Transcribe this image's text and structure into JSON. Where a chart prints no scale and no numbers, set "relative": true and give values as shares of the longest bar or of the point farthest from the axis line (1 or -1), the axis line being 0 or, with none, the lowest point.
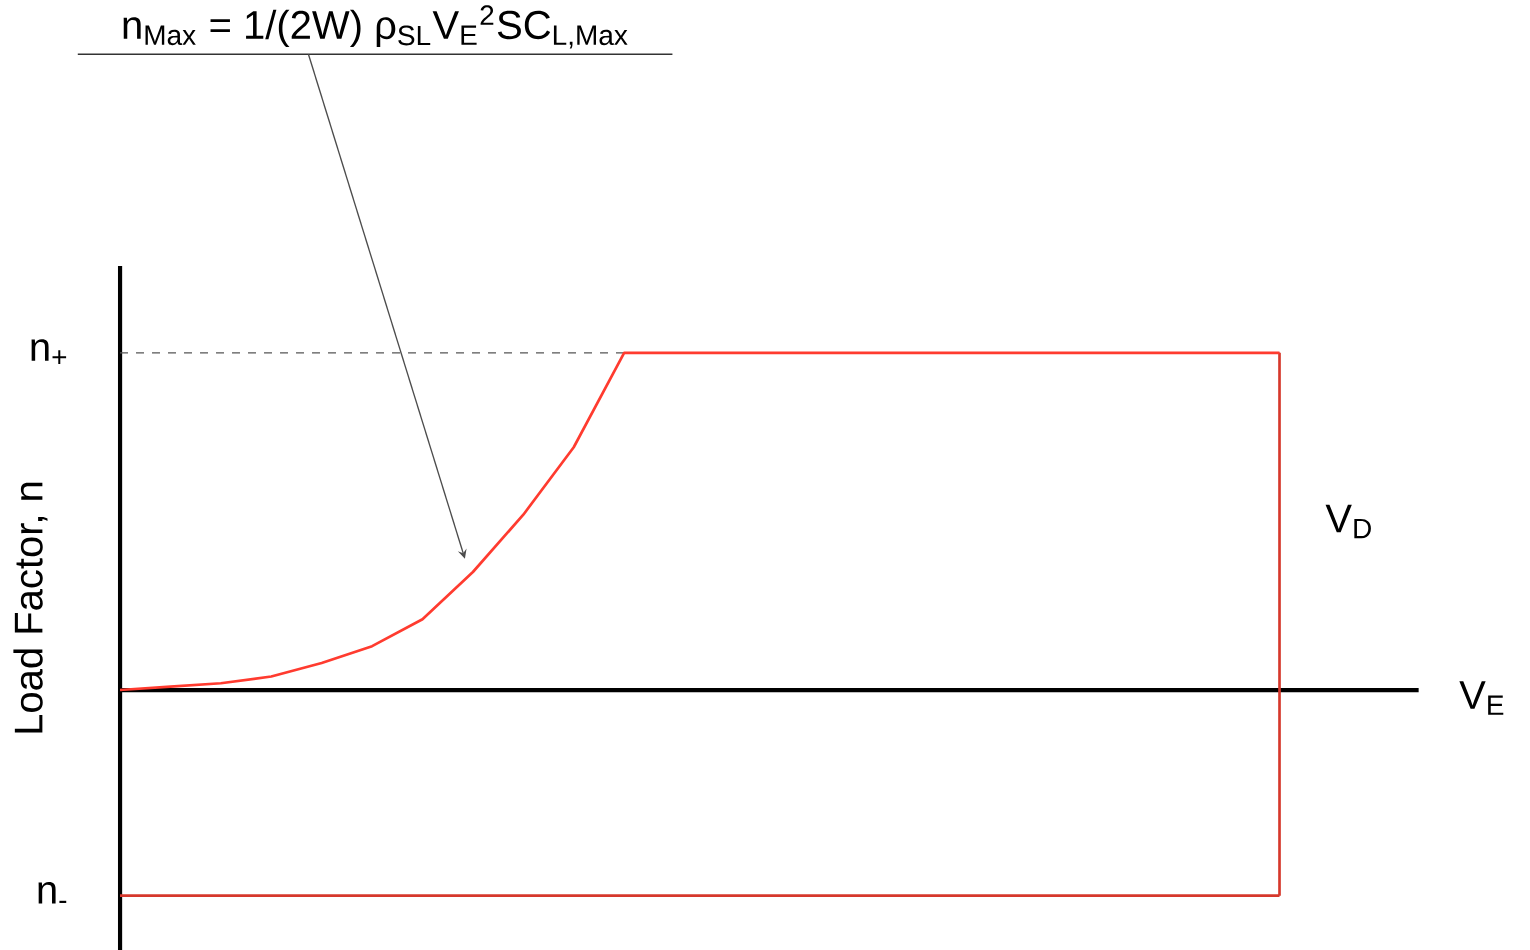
{
  "chart_data": {
    "type": "line",
    "relative": true,
    "xlabel": "V$_{E}$",
    "ylabel": "Load Factor, n",
    "categories": [
      null,
      null,
      null,
      null,
      null,
      null,
      null,
      null,
      null,
      null,
      null,
      null,
      null,
      null,
      null,
      null,
      null,
      null,
      null,
      null,
      null,
      null,
      null,
      null
    ],
    "series": [
      {
        "color": "#ff3b2f",
        "values": [
          0,
          0.01,
          0.02,
          0.04,
          0.08,
          0.13,
          0.21,
          0.35,
          0.52,
          0.72,
          1,
          1,
          1,
          1,
          1,
          1,
          1,
          1,
          1,
          1,
          1,
          1,
          1,
          1
        ]
      }
    ],
    "ref_lines": [
      {
        "axis": "y",
        "value": 1,
        "label": "n$_{+}$",
        "line_style": "dashed",
        "color": "#555555"
      },
      {
        "axis": "y",
        "value": -0.61,
        "label": "n$_{-}$",
        "color": "#d6382c"
      }
    ],
    "annotations": [
      "n$_{Max}$ = 1/(2W) ρ$_{SL}$V$_{E}$$^{2}$SC$_{L,Max}$",
      "V$_{D}$"
    ]
  }
}
